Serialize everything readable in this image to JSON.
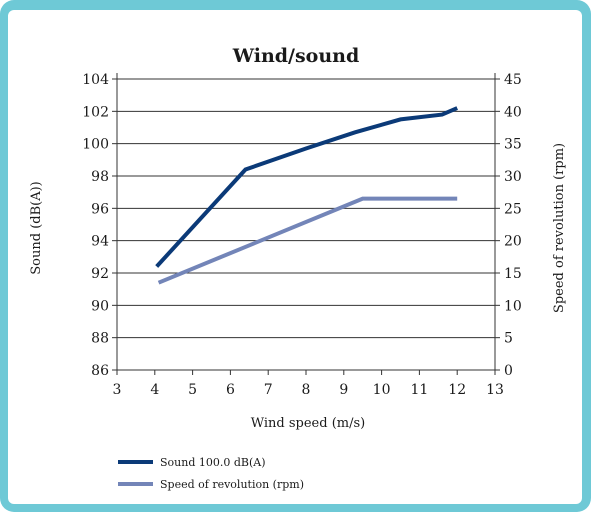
{
  "chart_data": {
    "type": "line",
    "title": "Wind/sound",
    "xlabel": "Wind speed (m/s)",
    "ylabel": "Sound (dB(A))",
    "y2label": "Speed of revolution (rpm)",
    "xlim": [
      3,
      13
    ],
    "ylim": [
      86,
      104
    ],
    "y2lim": [
      0,
      45
    ],
    "xticks": [
      "3",
      "4",
      "5",
      "6",
      "7",
      "8",
      "9",
      "10",
      "11",
      "12",
      "13"
    ],
    "yticks": [
      "86",
      "88",
      "90",
      "92",
      "94",
      "96",
      "98",
      "100",
      "102",
      "104"
    ],
    "y2ticks": [
      "0",
      "5",
      "10",
      "15",
      "20",
      "25",
      "30",
      "35",
      "40",
      "45"
    ],
    "grid": true,
    "legend_position": "bottom-left",
    "series": [
      {
        "name": "Sound 100.0 dB(A)",
        "axis": "left",
        "color": "#0b3a78",
        "x": [
          4.05,
          6.4,
          8.0,
          9.3,
          10.5,
          11.6,
          12.0
        ],
        "y": [
          92.4,
          98.4,
          99.7,
          100.7,
          101.5,
          101.8,
          102.2
        ]
      },
      {
        "name": "Speed of revolution (rpm)",
        "axis": "right",
        "color": "#7385b8",
        "x": [
          4.1,
          9.5,
          12.0
        ],
        "y": [
          13.5,
          26.5,
          26.5
        ]
      }
    ]
  }
}
